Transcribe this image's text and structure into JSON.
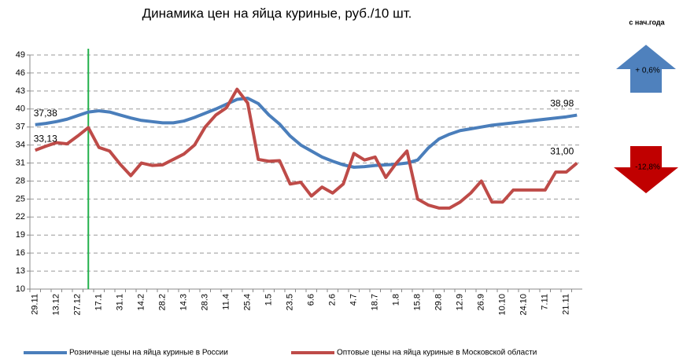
{
  "chart_data": {
    "type": "line",
    "title": "Динамика цен на яйца куриные, руб./10 шт.",
    "categories": [
      "29.11",
      null,
      "13.12",
      null,
      "27.12",
      null,
      "17.1",
      null,
      "31.1",
      null,
      "14.2",
      null,
      "28.2",
      null,
      "14.3",
      null,
      "28.3",
      null,
      "11.4",
      null,
      "25.4",
      null,
      "1.5",
      null,
      "23.5",
      null,
      "6.6",
      null,
      "2.6",
      null,
      "4.7",
      null,
      "18.7",
      null,
      "1.8",
      null,
      "15.8",
      null,
      "29.8",
      null,
      "12.9",
      null,
      "26.9",
      null,
      "10.10",
      null,
      "24.10",
      null,
      "7.11",
      null,
      "21.11",
      null
    ],
    "series": [
      {
        "name": "Розничные цены на яйца куриные в России",
        "color": "#4a7ebb",
        "values": [
          37.38,
          37.6,
          37.9,
          38.3,
          38.9,
          39.5,
          39.7,
          39.5,
          39.0,
          38.5,
          38.1,
          37.9,
          37.7,
          37.7,
          38.0,
          38.6,
          39.3,
          40.0,
          40.8,
          41.6,
          41.8,
          40.9,
          39.0,
          37.5,
          35.5,
          34.0,
          33.0,
          32.0,
          31.3,
          30.7,
          30.3,
          30.4,
          30.6,
          30.7,
          30.8,
          31.0,
          31.5,
          33.5,
          35.0,
          35.8,
          36.4,
          36.7,
          37.0,
          37.3,
          37.5,
          37.7,
          37.9,
          38.1,
          38.3,
          38.5,
          38.7,
          38.98
        ],
        "value_labels": [
          "37,38",
          null,
          null,
          null,
          null,
          null,
          null,
          null,
          null,
          null,
          null,
          null,
          null,
          null,
          null,
          null,
          null,
          null,
          null,
          null,
          null,
          null,
          null,
          null,
          null,
          null,
          null,
          null,
          null,
          null,
          null,
          null,
          null,
          null,
          null,
          null,
          null,
          null,
          null,
          null,
          null,
          null,
          null,
          null,
          null,
          null,
          null,
          null,
          null,
          null,
          null,
          "38,98"
        ]
      },
      {
        "name": "Оптовые цены на яйца куриные в Московской области",
        "color": "#be4b48",
        "values": [
          33.13,
          33.8,
          34.4,
          34.2,
          35.5,
          36.9,
          33.6,
          33.0,
          30.8,
          28.9,
          31.0,
          30.6,
          30.7,
          31.6,
          32.5,
          34.0,
          37.0,
          39.0,
          40.2,
          43.3,
          41.0,
          31.6,
          31.3,
          31.4,
          27.5,
          27.8,
          25.5,
          27.0,
          26.0,
          27.5,
          32.6,
          31.5,
          32.0,
          28.6,
          31.0,
          33.0,
          25.0,
          24.0,
          23.5,
          23.5,
          24.5,
          26.0,
          28.0,
          24.5,
          24.5,
          26.5,
          26.5,
          26.5,
          26.5,
          29.5,
          29.5,
          31.0
        ],
        "value_labels": [
          "33,13",
          null,
          null,
          null,
          null,
          null,
          null,
          null,
          null,
          null,
          null,
          null,
          null,
          null,
          null,
          null,
          null,
          null,
          null,
          null,
          null,
          null,
          null,
          null,
          null,
          null,
          null,
          null,
          null,
          null,
          null,
          null,
          null,
          null,
          null,
          null,
          null,
          null,
          null,
          null,
          null,
          null,
          null,
          null,
          null,
          null,
          null,
          null,
          null,
          null,
          null,
          "31,00"
        ]
      }
    ],
    "ylim": [
      10,
      49
    ],
    "yticks": [
      10,
      13,
      16,
      19,
      22,
      25,
      28,
      31,
      34,
      37,
      40,
      43,
      46,
      49
    ],
    "grid": true,
    "change_period": "с нач.года",
    "changes": [
      {
        "value": 0.6,
        "label": "+ 0,6%",
        "color": "#4f81bd"
      },
      {
        "value": -12.8,
        "label": "-12,8%",
        "color": "#c00000"
      }
    ]
  }
}
